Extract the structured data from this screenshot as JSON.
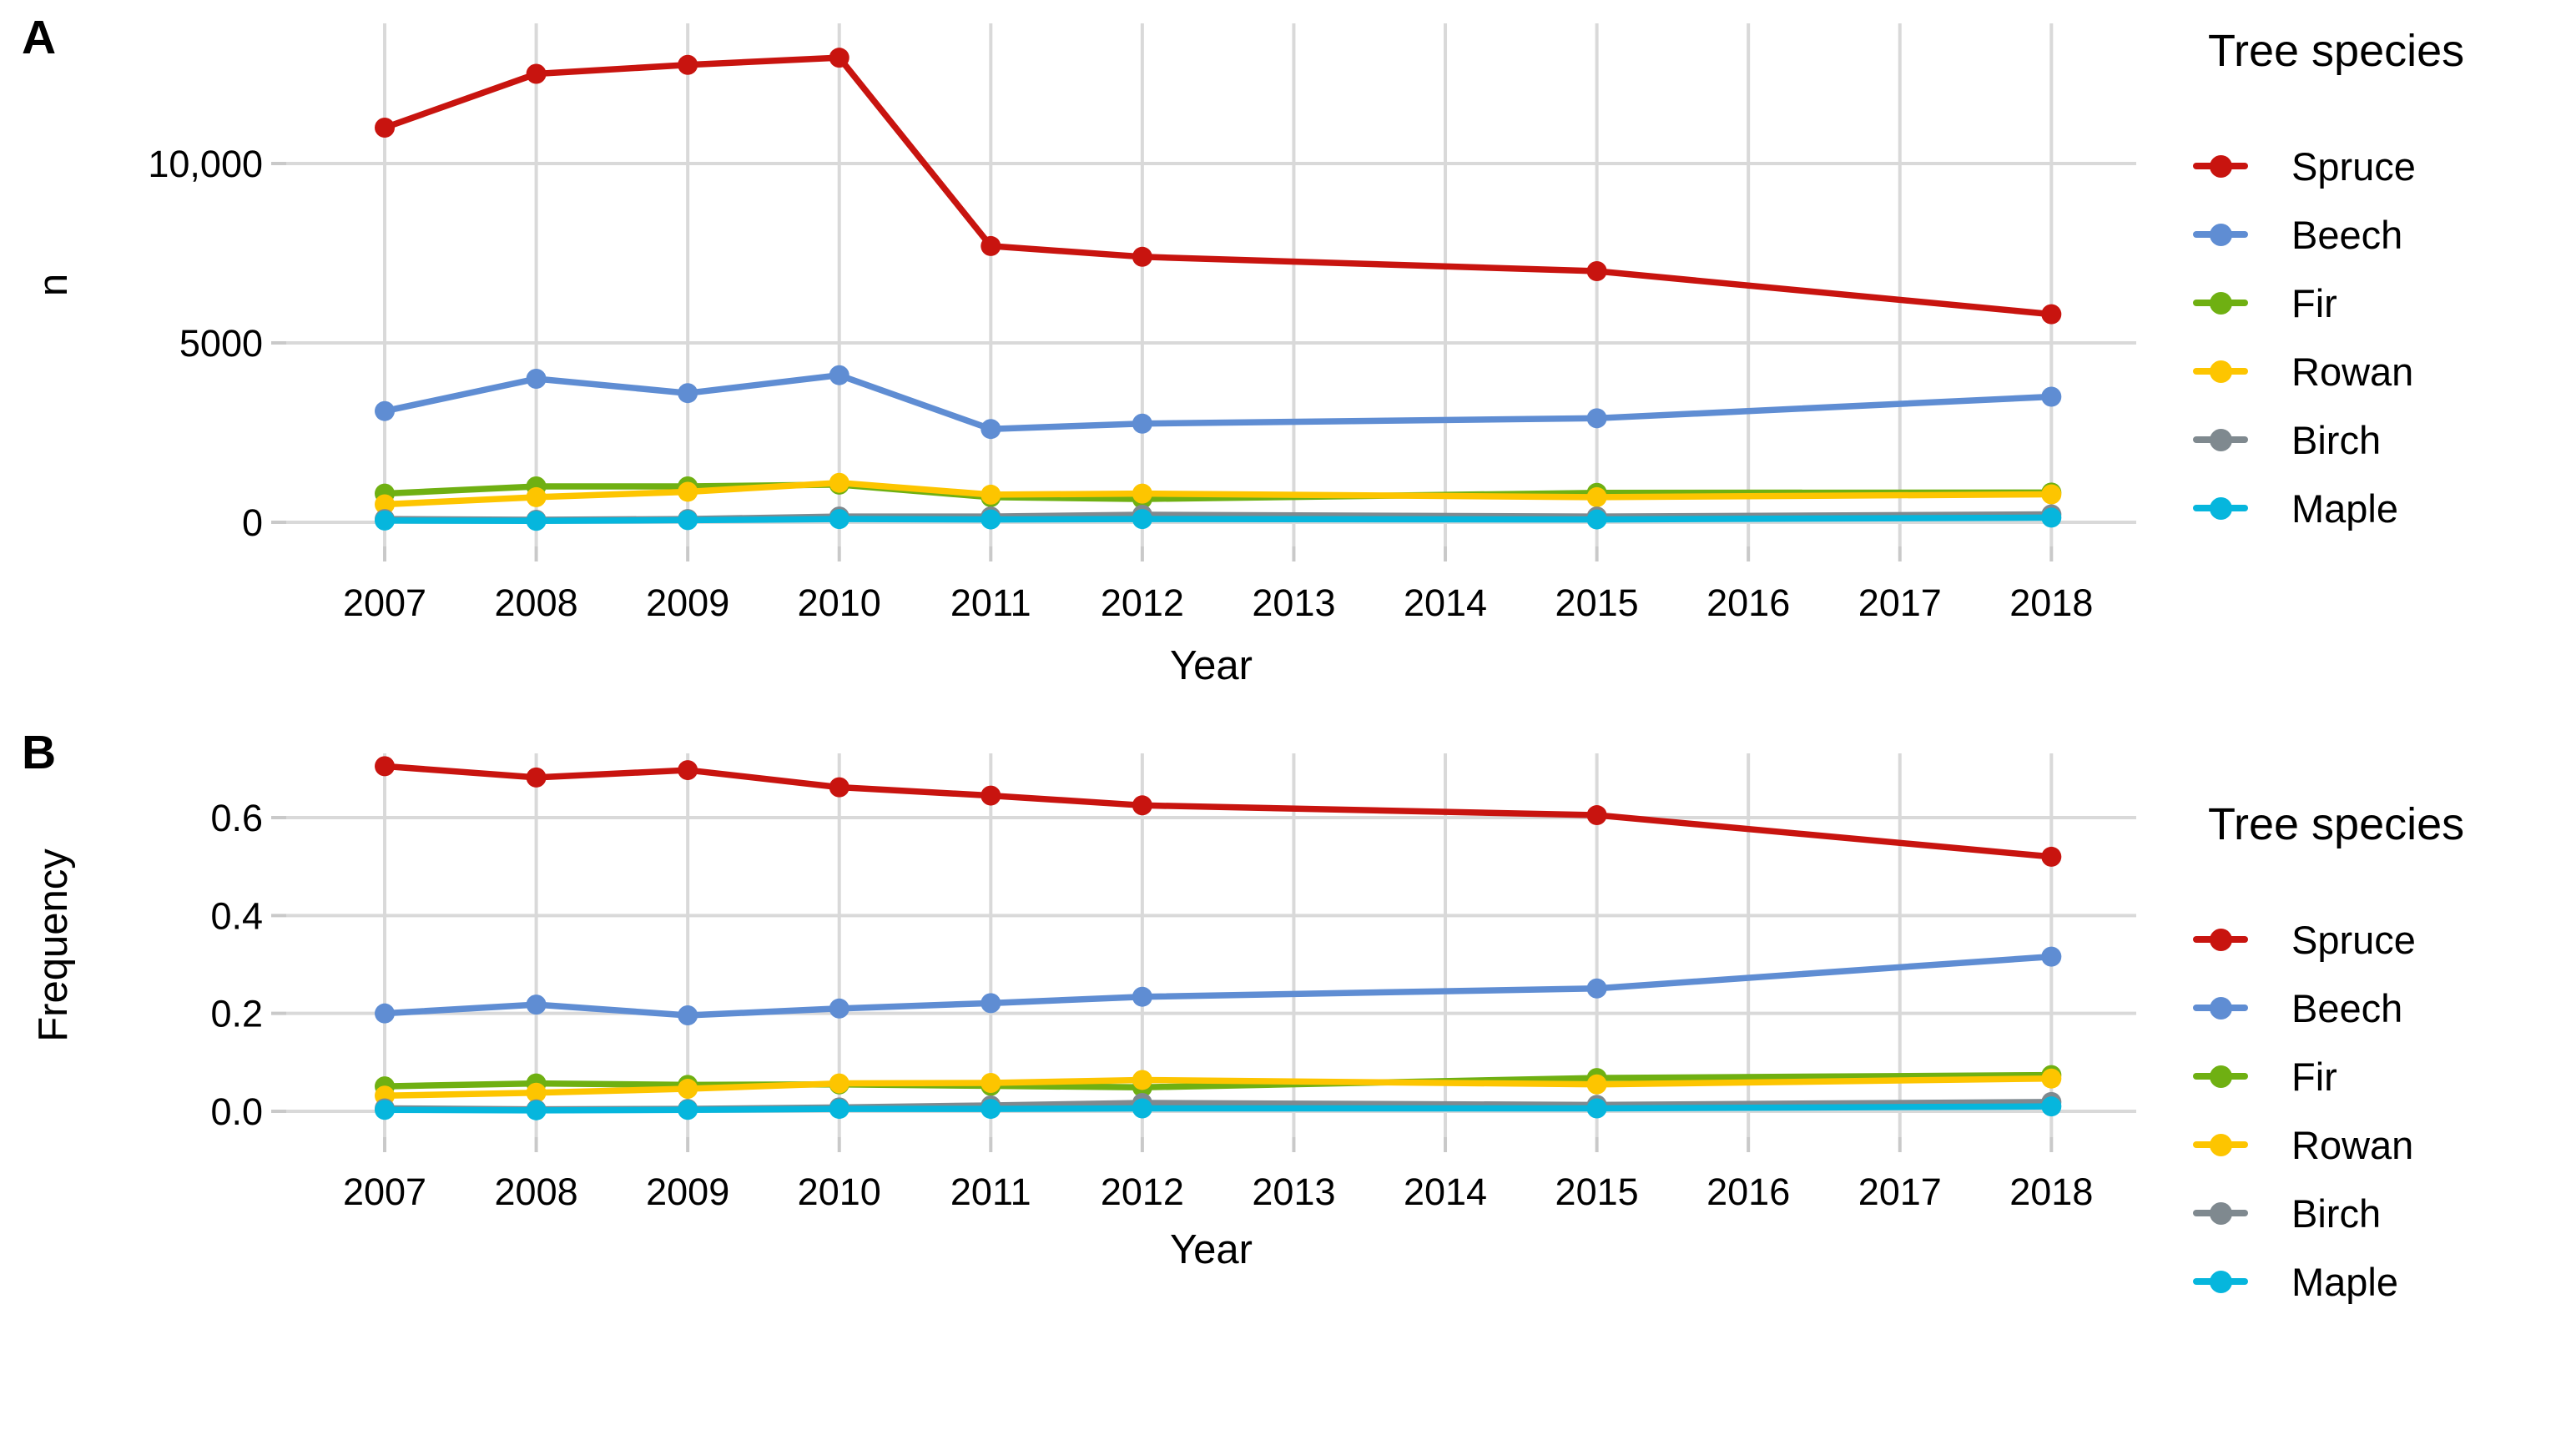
{
  "chart_data": [
    {
      "type": "line",
      "tag": "A",
      "xlabel": "Year",
      "ylabel": "n",
      "legend_title": "Tree species",
      "x": [
        2007,
        2008,
        2009,
        2010,
        2011,
        2012,
        2015,
        2018
      ],
      "xticks": [
        2007,
        2008,
        2009,
        2010,
        2011,
        2012,
        2013,
        2014,
        2015,
        2016,
        2017,
        2018
      ],
      "xlim": [
        2006.35,
        2018.56
      ],
      "ylim": [
        -674,
        13907
      ],
      "yticks": [
        {
          "v": 0,
          "label": "0"
        },
        {
          "v": 5000,
          "label": "5000"
        },
        {
          "v": 10000,
          "label": "10,000"
        }
      ],
      "grid": "major-only",
      "grid_color": "#d9d9d9",
      "legend_position": "right",
      "series": [
        {
          "name": "Spruce",
          "color": "#c8140f",
          "values": [
            11000,
            12500,
            12750,
            12950,
            7700,
            7400,
            7000,
            5800
          ]
        },
        {
          "name": "Beech",
          "color": "#5f8dd3",
          "values": [
            3100,
            4000,
            3600,
            4100,
            2600,
            2750,
            2900,
            3500
          ]
        },
        {
          "name": "Fir",
          "color": "#6fb012",
          "values": [
            800,
            1000,
            1000,
            1050,
            700,
            650,
            820,
            830
          ]
        },
        {
          "name": "Rowan",
          "color": "#fdc500",
          "values": [
            500,
            700,
            850,
            1100,
            770,
            800,
            700,
            780
          ]
        },
        {
          "name": "Birch",
          "color": "#7f898f",
          "values": [
            90,
            70,
            90,
            160,
            160,
            210,
            160,
            220
          ]
        },
        {
          "name": "Maple",
          "color": "#06b6dd",
          "values": [
            50,
            40,
            60,
            90,
            80,
            90,
            80,
            130
          ]
        }
      ]
    },
    {
      "type": "line",
      "tag": "B",
      "xlabel": "Year",
      "ylabel": "Frequency",
      "legend_title": "Tree species",
      "x": [
        2007,
        2008,
        2009,
        2010,
        2011,
        2012,
        2015,
        2018
      ],
      "xticks": [
        2007,
        2008,
        2009,
        2010,
        2011,
        2012,
        2013,
        2014,
        2015,
        2016,
        2017,
        2018
      ],
      "xlim": [
        2006.35,
        2018.56
      ],
      "ylim": [
        -0.0528,
        0.7312
      ],
      "yticks": [
        {
          "v": 0.0,
          "label": "0.0"
        },
        {
          "v": 0.2,
          "label": "0.2"
        },
        {
          "v": 0.4,
          "label": "0.4"
        },
        {
          "v": 0.6,
          "label": "0.6"
        }
      ],
      "grid": "major-only",
      "grid_color": "#d9d9d9",
      "legend_position": "right",
      "series": [
        {
          "name": "Spruce",
          "color": "#c8140f",
          "values": [
            0.705,
            0.682,
            0.697,
            0.662,
            0.645,
            0.625,
            0.605,
            0.52
          ]
        },
        {
          "name": "Beech",
          "color": "#5f8dd3",
          "values": [
            0.2,
            0.218,
            0.196,
            0.21,
            0.221,
            0.234,
            0.251,
            0.316
          ]
        },
        {
          "name": "Fir",
          "color": "#6fb012",
          "values": [
            0.051,
            0.057,
            0.054,
            0.055,
            0.052,
            0.049,
            0.068,
            0.074
          ]
        },
        {
          "name": "Rowan",
          "color": "#fdc500",
          "values": [
            0.032,
            0.038,
            0.046,
            0.057,
            0.058,
            0.064,
            0.055,
            0.067
          ]
        },
        {
          "name": "Birch",
          "color": "#7f898f",
          "values": [
            0.006,
            0.004,
            0.005,
            0.008,
            0.012,
            0.017,
            0.013,
            0.019
          ]
        },
        {
          "name": "Maple",
          "color": "#06b6dd",
          "values": [
            0.003,
            0.002,
            0.003,
            0.005,
            0.005,
            0.006,
            0.006,
            0.01
          ]
        }
      ]
    }
  ]
}
